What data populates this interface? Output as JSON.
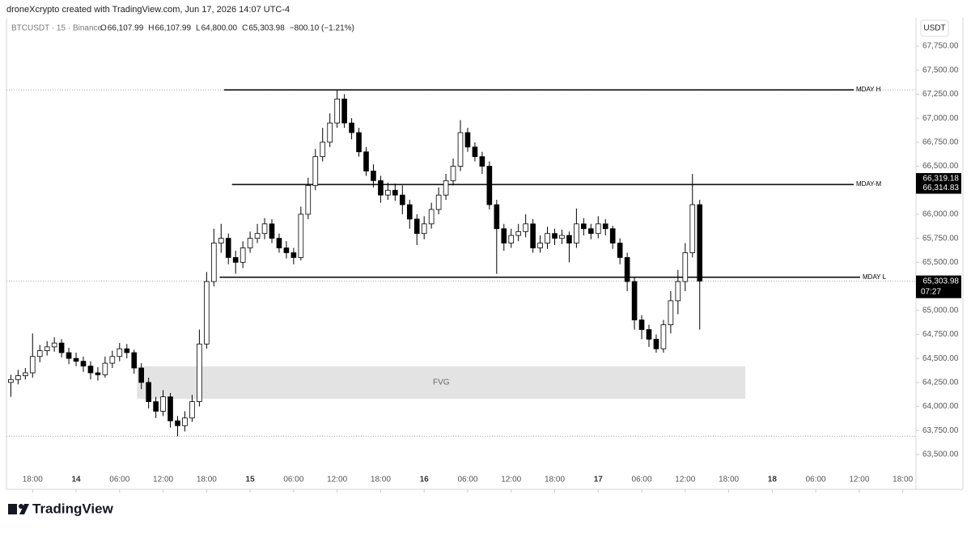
{
  "chart_data": {
    "type": "candlestick",
    "attribution": "droneXcrypto created with TradingView.com, Jun 17, 2026 14:07 UTC-4",
    "symbol": "BTCUSDT · 15 · Binance",
    "header_items": [
      "O",
      "66,107.99",
      "H",
      "66,107.99",
      "L",
      "64,800.00",
      "C",
      "65,303.98",
      "−800.10 (−1.21%)"
    ],
    "currency": "USDT",
    "logo": "TradingView",
    "x": [
      -9,
      -8,
      -7,
      -6,
      -5,
      -4,
      -3,
      -2,
      -1,
      0,
      1,
      2,
      3,
      4,
      5,
      6,
      7,
      8,
      9,
      10,
      11,
      12,
      13,
      14,
      15,
      16,
      17,
      18,
      19,
      20,
      21,
      22,
      23,
      24,
      25,
      26,
      27,
      28,
      29,
      30,
      31,
      32,
      33,
      34,
      35,
      36,
      37,
      38,
      39,
      40,
      41,
      42,
      43,
      44,
      45,
      46,
      47,
      48,
      49,
      50,
      51,
      52,
      53,
      54,
      55,
      56,
      57,
      58,
      59,
      60,
      61,
      62,
      63,
      64,
      65,
      66,
      67,
      68,
      69,
      70,
      71,
      72,
      73,
      74,
      75,
      76,
      77,
      78,
      79,
      80,
      81,
      82,
      83,
      84,
      85,
      86
    ],
    "open": [
      64250,
      64280,
      64320,
      64350,
      64520,
      64580,
      64620,
      64660,
      64560,
      64500,
      64470,
      64420,
      64350,
      64330,
      64450,
      64520,
      64600,
      64560,
      64400,
      64250,
      64050,
      63950,
      64100,
      63850,
      63800,
      63880,
      64050,
      64650,
      65300,
      65700,
      65750,
      65550,
      65500,
      65650,
      65750,
      65800,
      65900,
      65750,
      65650,
      65600,
      65550,
      66000,
      66300,
      66600,
      66750,
      66950,
      67200,
      66950,
      66850,
      66650,
      66450,
      66350,
      66200,
      66250,
      66200,
      66100,
      65950,
      65800,
      65900,
      66050,
      66200,
      66350,
      66500,
      66850,
      66700,
      66600,
      66500,
      66100,
      65850,
      65700,
      65780,
      65820,
      65900,
      65650,
      65700,
      65800,
      65750,
      65780,
      65700,
      65900,
      65850,
      65800,
      65900,
      65850,
      65700,
      65550,
      65300,
      64900,
      64800,
      64700,
      64600,
      64850,
      65100,
      65300,
      65600,
      66100
    ],
    "high": [
      64330,
      64380,
      64400,
      64760,
      64640,
      64680,
      64720,
      64700,
      64610,
      64560,
      64520,
      64470,
      64410,
      64520,
      64580,
      64660,
      64650,
      64590,
      64450,
      64300,
      64100,
      64170,
      64140,
      63900,
      63950,
      64120,
      64800,
      65400,
      65850,
      65900,
      65800,
      65620,
      65720,
      65820,
      65900,
      65960,
      65950,
      65800,
      65720,
      65650,
      66080,
      66380,
      66680,
      66900,
      67050,
      67290,
      67250,
      67000,
      66900,
      66700,
      66520,
      66400,
      66330,
      66320,
      66300,
      66150,
      66000,
      65980,
      66120,
      66280,
      66420,
      66580,
      66980,
      66900,
      66750,
      66650,
      66550,
      66150,
      65900,
      65850,
      65900,
      66000,
      65950,
      65780,
      65870,
      65850,
      65840,
      65820,
      66060,
      65960,
      65900,
      65980,
      65950,
      65880,
      65750,
      65600,
      65350,
      64950,
      64850,
      64750,
      64900,
      65200,
      65420,
      65700,
      66420,
      66150
    ],
    "low": [
      64100,
      64230,
      64280,
      64300,
      64460,
      64530,
      64570,
      64510,
      64440,
      64420,
      64360,
      64280,
      64270,
      64300,
      64400,
      64470,
      64500,
      64340,
      64180,
      63980,
      63880,
      63900,
      63780,
      63690,
      63740,
      63840,
      64000,
      64600,
      65250,
      65600,
      65480,
      65380,
      65440,
      65600,
      65700,
      65740,
      65700,
      65600,
      65540,
      65480,
      65520,
      65950,
      66250,
      66550,
      66700,
      66900,
      66900,
      66780,
      66600,
      66400,
      66280,
      66120,
      66150,
      66140,
      66000,
      65850,
      65680,
      65740,
      65850,
      66000,
      66150,
      66300,
      66450,
      66650,
      66550,
      66420,
      66050,
      65380,
      65620,
      65650,
      65720,
      65760,
      65600,
      65600,
      65640,
      65680,
      65690,
      65500,
      65650,
      65780,
      65740,
      65750,
      65780,
      65640,
      65480,
      65200,
      64800,
      64700,
      64620,
      64560,
      64560,
      64760,
      64960,
      65200,
      65550,
      64800
    ],
    "close": [
      64280,
      64320,
      64350,
      64520,
      64580,
      64620,
      64660,
      64560,
      64500,
      64470,
      64420,
      64350,
      64330,
      64450,
      64520,
      64600,
      64560,
      64400,
      64250,
      64050,
      63950,
      64100,
      63850,
      63800,
      63880,
      64050,
      64650,
      65300,
      65700,
      65750,
      65550,
      65500,
      65650,
      65750,
      65800,
      65900,
      65750,
      65650,
      65600,
      65550,
      66000,
      66300,
      66600,
      66750,
      66950,
      67200,
      66950,
      66850,
      66650,
      66450,
      66350,
      66200,
      66250,
      66200,
      66100,
      65950,
      65800,
      65900,
      66050,
      66200,
      66350,
      66500,
      66850,
      66700,
      66600,
      66500,
      66100,
      65850,
      65700,
      65780,
      65820,
      65900,
      65650,
      65700,
      65800,
      65750,
      65780,
      65700,
      65900,
      65850,
      65800,
      65900,
      65850,
      65700,
      65550,
      65300,
      64900,
      64800,
      64700,
      64600,
      64850,
      65100,
      65300,
      65600,
      66100,
      65303.98
    ],
    "up_color": "#ffffff",
    "down_color": "#000000",
    "wick_color": "#000000",
    "levels": [
      {
        "label": "MDAY H",
        "value": 67295,
        "x_start": 20.4
      },
      {
        "label": "MDAY-M",
        "value": 66310,
        "x_start": 21.5
      },
      {
        "label": "MDAY L",
        "value": 65345,
        "x_start": 19.8
      }
    ],
    "fvg": {
      "label": "FVG",
      "x": [
        8.4,
        92.3
      ],
      "y": [
        64080,
        64417
      ],
      "color": "#e3e3e3"
    },
    "dotted_levels": [
      67295,
      63690
    ],
    "price_labels": [
      {
        "value": 66319.18,
        "label": "66,319.18"
      },
      {
        "value": 66314.83,
        "label": "66,314.83"
      },
      {
        "value": 65303.98,
        "label": "65,303.98"
      }
    ],
    "countdown": "07:27",
    "xlim": [
      -9.6,
      115.6
    ],
    "xticks": [
      {
        "value": -6,
        "label": "18:00"
      },
      {
        "value": 0,
        "label": "14"
      },
      {
        "value": 6,
        "label": "06:00"
      },
      {
        "value": 12,
        "label": "12:00"
      },
      {
        "value": 18,
        "label": "18:00"
      },
      {
        "value": 24,
        "label": "15"
      },
      {
        "value": 30,
        "label": "06:00"
      },
      {
        "value": 36,
        "label": "12:00"
      },
      {
        "value": 42,
        "label": "18:00"
      },
      {
        "value": 48,
        "label": "16"
      },
      {
        "value": 54,
        "label": "06:00"
      },
      {
        "value": 60,
        "label": "12:00"
      },
      {
        "value": 66,
        "label": "18:00"
      },
      {
        "value": 72,
        "label": "17"
      },
      {
        "value": 78,
        "label": "06:00"
      },
      {
        "value": 84,
        "label": "12:00"
      },
      {
        "value": 90,
        "label": "18:00"
      },
      {
        "value": 96,
        "label": "18"
      },
      {
        "value": 102,
        "label": "06:00"
      },
      {
        "value": 108,
        "label": "12:00"
      },
      {
        "value": 114,
        "label": "18:00"
      }
    ],
    "ylim": [
      63390,
      68045
    ],
    "yticks": [
      {
        "value": 63500,
        "label": "63,500.00"
      },
      {
        "value": 63750,
        "label": "63,750.00"
      },
      {
        "value": 64000,
        "label": "64,000.00"
      },
      {
        "value": 64250,
        "label": "64,250.00"
      },
      {
        "value": 64500,
        "label": "64,500.00"
      },
      {
        "value": 64750,
        "label": "64,750.00"
      },
      {
        "value": 65000,
        "label": "65,000.00"
      },
      {
        "value": 65250,
        "label": "65,250.00"
      },
      {
        "value": 65500,
        "label": "65,500.00"
      },
      {
        "value": 65750,
        "label": "65,750.00"
      },
      {
        "value": 66000,
        "label": "66,000.00"
      },
      {
        "value": 66250,
        "label": "66,250.00"
      },
      {
        "value": 66500,
        "label": "66,500.00"
      },
      {
        "value": 66750,
        "label": "66,750.00"
      },
      {
        "value": 67000,
        "label": "67,000.00"
      },
      {
        "value": 67250,
        "label": "67,250.00"
      },
      {
        "value": 67500,
        "label": "67,500.00"
      },
      {
        "value": 67750,
        "label": "67,750.00"
      }
    ]
  }
}
